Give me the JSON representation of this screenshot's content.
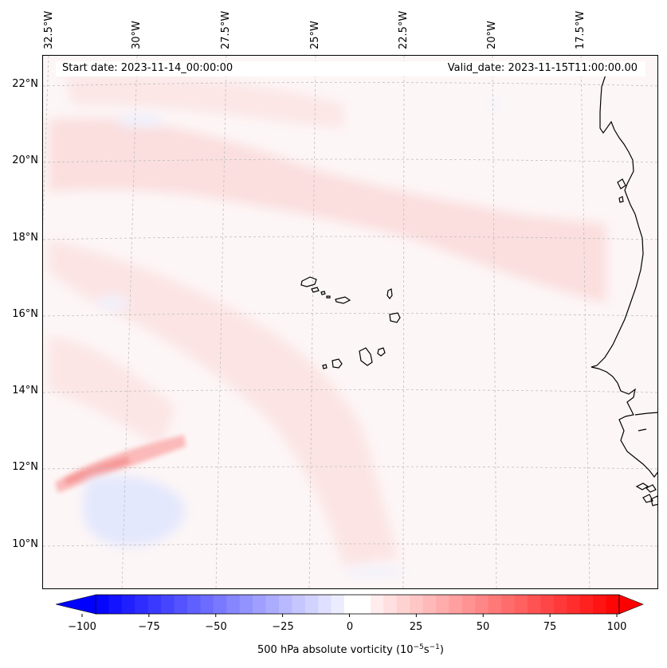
{
  "map": {
    "longitude_labels": [
      "32.5°W",
      "30°W",
      "27.5°W",
      "25°W",
      "22.5°W",
      "20°W",
      "17.5°W"
    ],
    "latitude_labels": [
      "22°N",
      "20°N",
      "18°N",
      "16°N",
      "14°N",
      "12°N",
      "10°N"
    ],
    "start_date": "Start date: 2023-11-14_00:00:00",
    "valid_date": "Valid_date: 2023-11-15T11:00:00.00",
    "region": "Cape Verde islands and West African coast",
    "field": "500 hPa absolute vorticity"
  },
  "colorbar": {
    "tick_labels": [
      "−100",
      "−75",
      "−50",
      "−25",
      "0",
      "25",
      "50",
      "75",
      "100"
    ],
    "range": [
      -100,
      100
    ],
    "levels": 40,
    "label_prefix": "500 hPa absolute vorticity (10",
    "label_exp1": "−5",
    "label_mid": "s",
    "label_exp2": "−1",
    "label_suffix": ")",
    "min_color": "#0000ff",
    "mid_color": "#ffffff",
    "max_color": "#ff0000"
  }
}
